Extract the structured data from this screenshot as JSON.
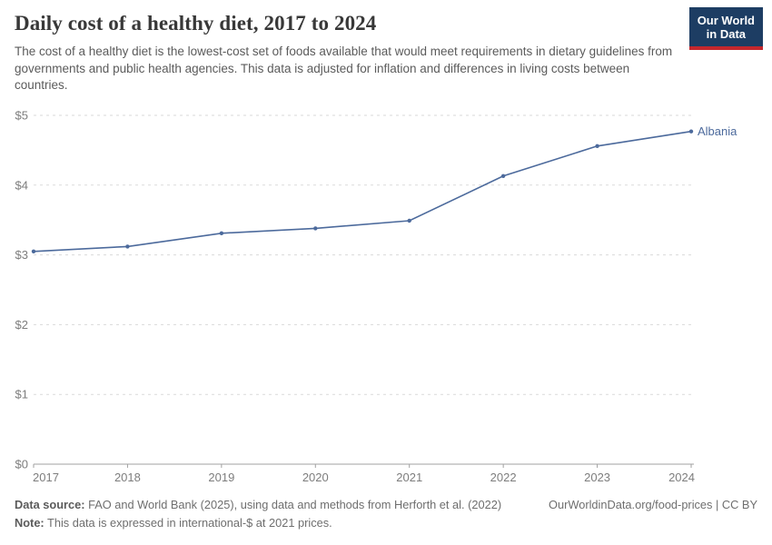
{
  "header": {
    "title": "Daily cost of a healthy diet, 2017 to 2024",
    "subtitle": "The cost of a healthy diet is the lowest-cost set of foods available that would meet requirements in dietary guidelines from governments and public health agencies. This data is adjusted for inflation and differences in living costs between countries.",
    "logo_line1": "Our World",
    "logo_line2": "in Data",
    "logo_bg_color": "#1d3d63",
    "logo_accent_color": "#c5272d"
  },
  "chart_data": {
    "type": "line",
    "title": "Daily cost of a healthy diet, 2017 to 2024",
    "x": [
      2017,
      2018,
      2019,
      2020,
      2021,
      2022,
      2023,
      2024
    ],
    "series": [
      {
        "name": "Albania",
        "color": "#4c6a9c",
        "values": [
          3.05,
          3.12,
          3.31,
          3.38,
          3.49,
          4.13,
          4.56,
          4.77
        ]
      }
    ],
    "xlabel": "",
    "ylabel": "",
    "ylim": [
      0,
      5
    ],
    "ytick_values": [
      0,
      1,
      2,
      3,
      4,
      5
    ],
    "ytick_labels": [
      "$0",
      "$1",
      "$2",
      "$3",
      "$4",
      "$5"
    ],
    "xtick_labels": [
      "2017",
      "2018",
      "2019",
      "2020",
      "2021",
      "2022",
      "2023",
      "2024"
    ],
    "grid": "horizontal dashed",
    "grid_color": "#dadada",
    "axis_color": "#a1a1a1",
    "tick_label_color": "#7d7d7d",
    "legend": "series label at right end of line"
  },
  "footer": {
    "source_label": "Data source:",
    "source_text": " FAO and World Bank (2025), using data and methods from Herforth et al. (2022)",
    "note_label": "Note:",
    "note_text": " This data is expressed in international-$ at 2021 prices.",
    "link": "OurWorldinData.org/food-prices | CC BY"
  }
}
